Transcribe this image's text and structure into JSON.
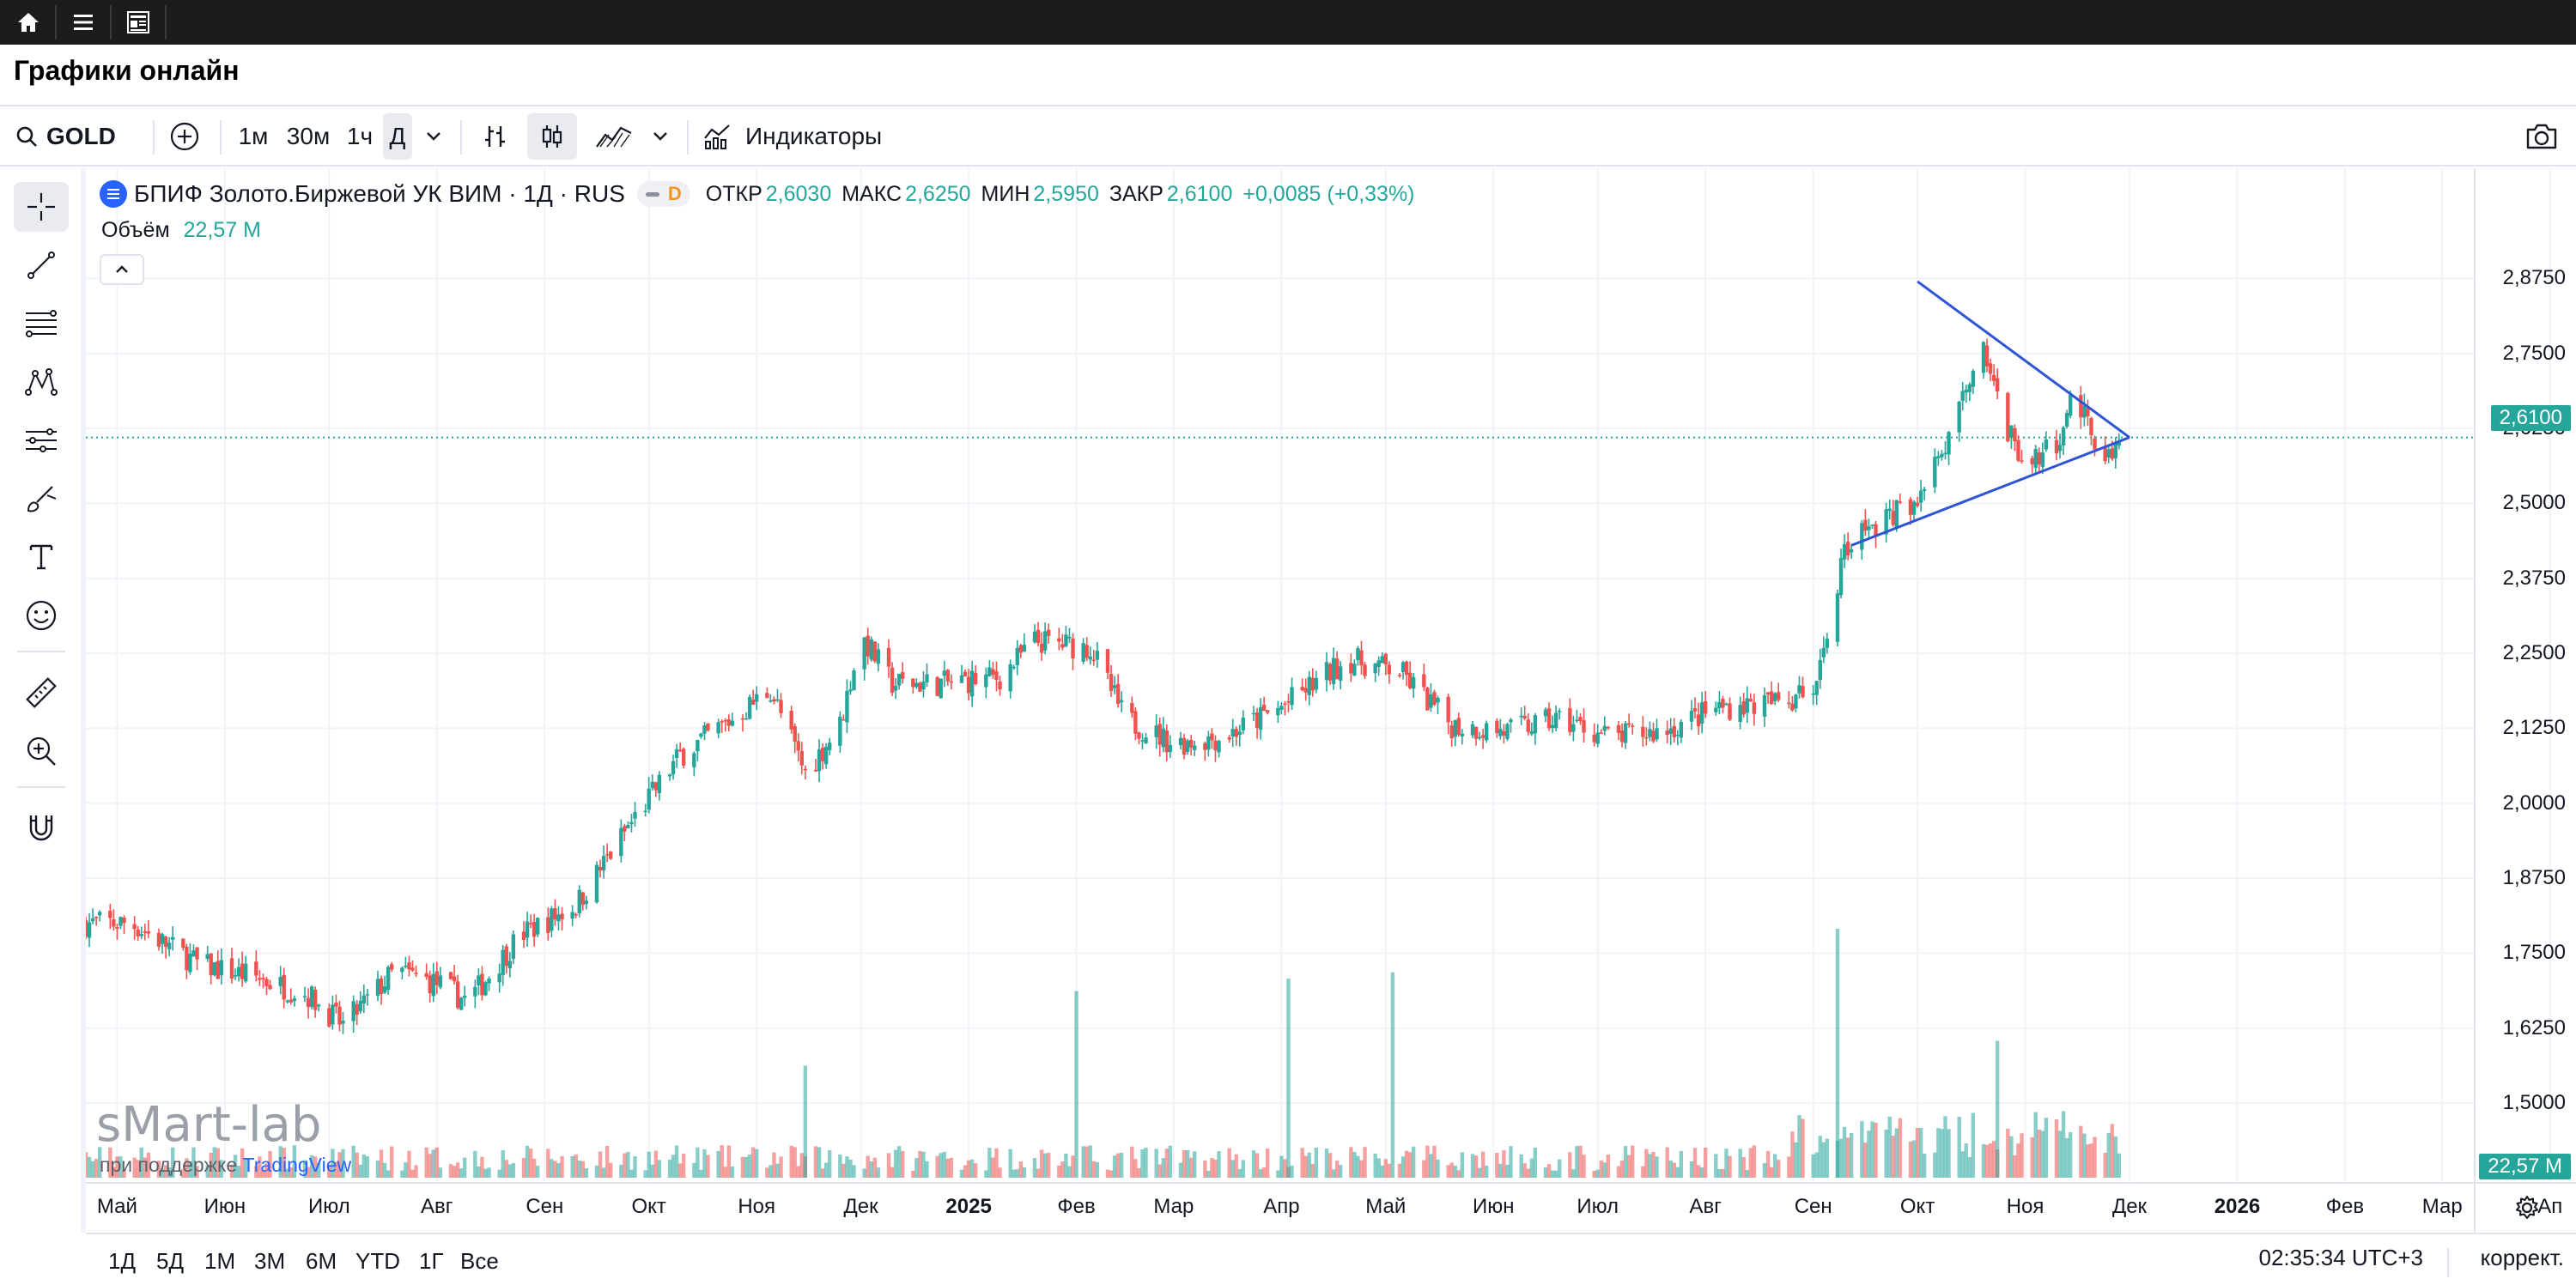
{
  "page": {
    "title": "Графики онлайн"
  },
  "topbar": {
    "icons": [
      "home-icon",
      "menu-icon",
      "news-icon"
    ]
  },
  "toolbar": {
    "symbol": "GOLD",
    "intervals": [
      "1м",
      "30м",
      "1ч",
      "Д"
    ],
    "active_interval": "Д",
    "indicators_label": "Индикаторы"
  },
  "left_tools": [
    "crosshair-icon",
    "trend-line-icon",
    "fib-icon",
    "pattern-icon",
    "forecast-icon",
    "brush-icon",
    "text-icon",
    "emoji-icon",
    "ruler-icon",
    "zoom-in-icon",
    "magnet-icon"
  ],
  "legend": {
    "title": "БПИФ Золото.Биржевой УК ВИМ · 1Д · RUS",
    "badge": "D",
    "open_label": "ОТКР",
    "open": "2,6030",
    "high_label": "МАКС",
    "high": "2,6250",
    "low_label": "МИН",
    "low": "2,5950",
    "close_label": "ЗАКР",
    "close": "2,6100",
    "change": "+0,0085 (+0,33%)"
  },
  "volume_legend": {
    "label": "Объём",
    "value": "22,57 M"
  },
  "watermark": {
    "text": "sMart-lab",
    "powered_prefix": "при поддержке",
    "powered_brand": "TradingView"
  },
  "price_axis": {
    "labels": [
      "2,8750",
      "2,7500",
      "2,6250",
      "2,5000",
      "2,3750",
      "2,2500",
      "2,1250",
      "2,0000",
      "1,8750",
      "1,7500",
      "1,6250",
      "1,5000"
    ],
    "last_price": "2,6100",
    "last_volume": "22,57 M"
  },
  "time_axis": {
    "labels": [
      "Май",
      "Июн",
      "Июл",
      "Авг",
      "Сен",
      "Окт",
      "Ноя",
      "Дек",
      "2025",
      "Фев",
      "Мар",
      "Апр",
      "Май",
      "Июн",
      "Июл",
      "Авг",
      "Сен",
      "Окт",
      "Ноя",
      "Дек",
      "2026",
      "Фев",
      "Мар",
      "Ап"
    ],
    "bold": [
      "2025",
      "2026"
    ]
  },
  "bottom": {
    "ranges": [
      "1Д",
      "5Д",
      "1М",
      "3М",
      "6М",
      "YTD",
      "1Г",
      "Все"
    ],
    "clock": "02:35:34 UTC+3",
    "adjust": "коррект."
  },
  "colors": {
    "up": "#26a69a",
    "down": "#ef5350",
    "drawing": "#2f55d4",
    "accent": "#2962ff"
  },
  "chart_data": {
    "type": "candlestick",
    "ylim": [
      1.45,
      2.93
    ],
    "price_path": [
      [
        "2024-04-22",
        1.8
      ],
      [
        "2024-05-05",
        1.8
      ],
      [
        "2024-05-25",
        1.73
      ],
      [
        "2024-06-10",
        1.71
      ],
      [
        "2024-06-25",
        1.68
      ],
      [
        "2024-07-05",
        1.63
      ],
      [
        "2024-07-20",
        1.72
      ],
      [
        "2024-08-01",
        1.7
      ],
      [
        "2024-08-10",
        1.67
      ],
      [
        "2024-08-25",
        1.78
      ],
      [
        "2024-09-10",
        1.83
      ],
      [
        "2024-09-25",
        1.96
      ],
      [
        "2024-10-10",
        2.08
      ],
      [
        "2024-10-25",
        2.14
      ],
      [
        "2024-11-05",
        2.19
      ],
      [
        "2024-11-15",
        2.05
      ],
      [
        "2024-11-25",
        2.13
      ],
      [
        "2024-12-01",
        2.28
      ],
      [
        "2024-12-10",
        2.2
      ],
      [
        "2024-12-25",
        2.2
      ],
      [
        "2025-01-10",
        2.21
      ],
      [
        "2025-01-20",
        2.27
      ],
      [
        "2025-02-05",
        2.26
      ],
      [
        "2025-02-15",
        2.14
      ],
      [
        "2025-03-01",
        2.1
      ],
      [
        "2025-03-15",
        2.11
      ],
      [
        "2025-04-01",
        2.16
      ],
      [
        "2025-04-20",
        2.24
      ],
      [
        "2025-05-05",
        2.22
      ],
      [
        "2025-05-20",
        2.13
      ],
      [
        "2025-06-05",
        2.12
      ],
      [
        "2025-06-20",
        2.14
      ],
      [
        "2025-07-05",
        2.11
      ],
      [
        "2025-07-20",
        2.12
      ],
      [
        "2025-08-05",
        2.16
      ],
      [
        "2025-08-25",
        2.17
      ],
      [
        "2025-09-01",
        2.19
      ],
      [
        "2025-09-06",
        2.3
      ],
      [
        "2025-09-10",
        2.43
      ],
      [
        "2025-09-18",
        2.46
      ],
      [
        "2025-10-01",
        2.51
      ],
      [
        "2025-10-10",
        2.6
      ],
      [
        "2025-10-15",
        2.7
      ],
      [
        "2025-10-20",
        2.77
      ],
      [
        "2025-10-25",
        2.64
      ],
      [
        "2025-11-01",
        2.57
      ],
      [
        "2025-11-10",
        2.6
      ],
      [
        "2025-11-15",
        2.69
      ],
      [
        "2025-11-20",
        2.61
      ],
      [
        "2025-11-25",
        2.58
      ],
      [
        "2025-11-28",
        2.61
      ]
    ],
    "volume_spikes": [
      {
        "date": "2024-11-15",
        "volume_m": 90
      },
      {
        "date": "2025-02-01",
        "volume_m": 150
      },
      {
        "date": "2025-04-03",
        "volume_m": 160
      },
      {
        "date": "2025-05-03",
        "volume_m": 165
      },
      {
        "date": "2025-09-08",
        "volume_m": 200
      },
      {
        "date": "2025-10-24",
        "volume_m": 110
      }
    ],
    "triangle": {
      "p1": [
        "2025-10-01",
        2.87
      ],
      "apex": [
        "2025-12-01",
        2.61
      ],
      "p2": [
        "2025-09-12",
        2.43
      ]
    }
  }
}
